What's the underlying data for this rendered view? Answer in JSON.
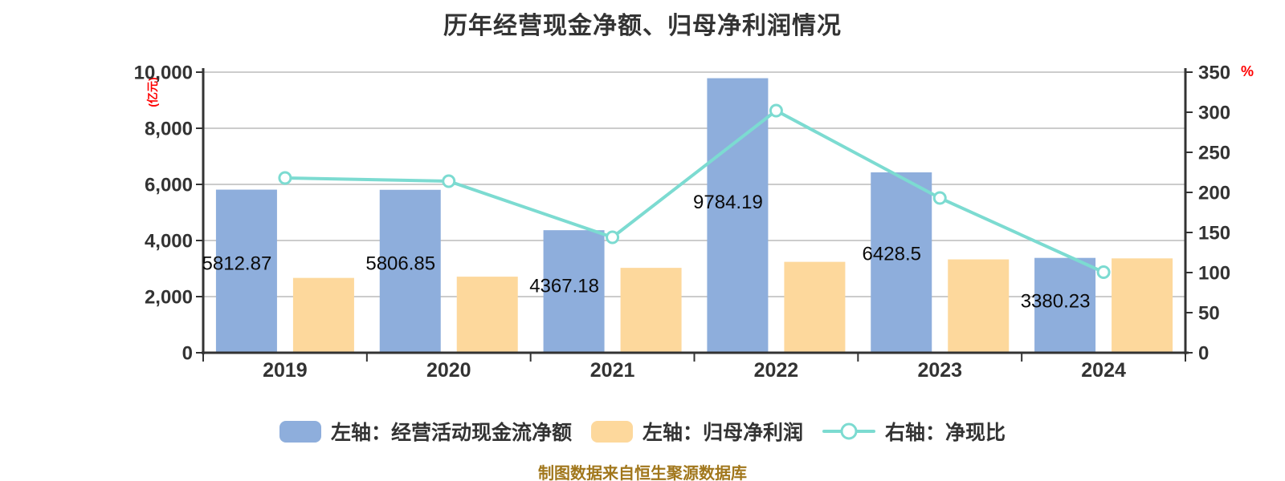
{
  "title": "历年经营现金净额、归母净利润情况",
  "caption": "制图数据来自恒生聚源数据库",
  "left_axis": {
    "unit": "(亿元)",
    "ticks": [
      "0",
      "2,000",
      "4,000",
      "6,000",
      "8,000",
      "10,000"
    ],
    "min": 0,
    "max": 10000
  },
  "right_axis": {
    "unit": "%",
    "ticks": [
      "0",
      "50",
      "100",
      "150",
      "200",
      "250",
      "300",
      "350"
    ],
    "min": 0,
    "max": 350
  },
  "legend": [
    {
      "label": "左轴：经营活动现金流净额",
      "marker": "bar-swatch",
      "color": "#8EAEDC"
    },
    {
      "label": "左轴：归母净利润",
      "marker": "bar-swatch",
      "color": "#FDD89C"
    },
    {
      "label": "右轴：净现比",
      "marker": "line-dot",
      "color": "#7CDBD1"
    }
  ],
  "colors": {
    "bar_cash": "#8EAEDC",
    "bar_profit": "#FDD89C",
    "line_ratio": "#7CDBD1",
    "grid": "#CCCCCC",
    "axis": "#333333",
    "unit_label": "#FF0000",
    "caption": "#A1771C",
    "value_label": "#0A0A0A"
  },
  "chart_data": {
    "type": "bar+line",
    "categories": [
      "2019",
      "2020",
      "2021",
      "2022",
      "2023",
      "2024"
    ],
    "series": [
      {
        "name": "左轴：经营活动现金流净额",
        "type": "bar",
        "axis": "left",
        "values": [
          5812.87,
          5806.85,
          4367.18,
          9784.19,
          6428.5,
          3380.23
        ],
        "data_labels": [
          "5812.87",
          "5806.85",
          "4367.18",
          "9784.19",
          "6428.5",
          "3380.23"
        ]
      },
      {
        "name": "左轴：归母净利润",
        "type": "bar",
        "axis": "left",
        "values": [
          2667,
          2711,
          3025,
          3239,
          3327,
          3363
        ]
      },
      {
        "name": "右轴：净现比",
        "type": "line",
        "axis": "right",
        "values": [
          218,
          214,
          144,
          302,
          193,
          100.5
        ]
      }
    ],
    "left_ylim": [
      0,
      10000
    ],
    "right_ylim": [
      0,
      350
    ],
    "grid": true,
    "legend_position": "bottom"
  }
}
